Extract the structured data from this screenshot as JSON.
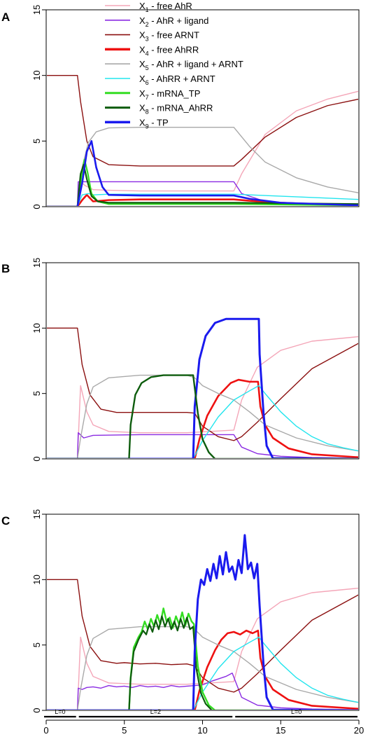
{
  "panel_labels": [
    "A",
    "B",
    "C"
  ],
  "legend": [
    {
      "prefix": "X",
      "sub": "1",
      "text": " - free AhR",
      "color": "#f4a6b8"
    },
    {
      "prefix": "X",
      "sub": "2",
      "text": " - AhR + ligand",
      "color": "#8a2be2"
    },
    {
      "prefix": "X",
      "sub": "3",
      "text": " - free ARNT",
      "color": "#8b1010"
    },
    {
      "prefix": "X",
      "sub": "4",
      "text": " - free AhRR",
      "color": "#ee1111"
    },
    {
      "prefix": "X",
      "sub": "5",
      "text": " - AhR + ligand + ARNT",
      "color": "#a9a9a9"
    },
    {
      "prefix": "X",
      "sub": "6",
      "text": " - AhRR + ARNT",
      "color": "#22e5ee"
    },
    {
      "prefix": "X",
      "sub": "7",
      "text": " - mRNA_TP",
      "color": "#33dd22"
    },
    {
      "prefix": "X",
      "sub": "8",
      "text": " - mRNA_AhRR",
      "color": "#0d5c0d"
    },
    {
      "prefix": "X",
      "sub": "9",
      "text": " - TP",
      "color": "#1a1aee"
    }
  ],
  "phase_bar": [
    {
      "label": "L=0",
      "from": 0,
      "to": 2
    },
    {
      "label": "L=2",
      "from": 2,
      "to": 12
    },
    {
      "label": "L=0",
      "from": 12,
      "to": 20
    }
  ],
  "chart_data": [
    {
      "panel": "A",
      "type": "line",
      "xlim": [
        0,
        20
      ],
      "ylim": [
        0,
        15
      ],
      "yticks": [
        0,
        5,
        10,
        15
      ],
      "xticks": [
        0,
        5,
        10,
        15,
        20
      ],
      "series": [
        {
          "color": "#f4a6b8",
          "width": 1.4,
          "x": [
            0,
            2,
            2.2,
            2.5,
            3,
            4,
            6,
            12,
            12.5,
            14,
            16,
            18,
            20
          ],
          "y": [
            0,
            0,
            1.9,
            1.6,
            1.3,
            1.25,
            1.2,
            1.2,
            2.5,
            5.5,
            7.3,
            8.2,
            8.8
          ]
        },
        {
          "color": "#8a2be2",
          "width": 1.4,
          "x": [
            0,
            2,
            2.05,
            2.5,
            3,
            6,
            12,
            12.5,
            14,
            16,
            20
          ],
          "y": [
            0,
            0,
            1.9,
            1.9,
            1.9,
            1.9,
            1.9,
            1.0,
            0.4,
            0.2,
            0.1
          ]
        },
        {
          "color": "#8b1010",
          "width": 1.4,
          "x": [
            0,
            2,
            2.2,
            2.6,
            3,
            4,
            6,
            12,
            12.5,
            14,
            16,
            18,
            20
          ],
          "y": [
            10,
            10,
            8,
            5,
            3.8,
            3.2,
            3.1,
            3.1,
            3.6,
            5.3,
            6.8,
            7.7,
            8.2
          ]
        },
        {
          "color": "#ee1111",
          "width": 2.6,
          "x": [
            0,
            2,
            2.3,
            2.6,
            3,
            4,
            6,
            12,
            13,
            15,
            17,
            20
          ],
          "y": [
            0,
            0,
            0.5,
            0.9,
            0.4,
            0.5,
            0.55,
            0.55,
            0.45,
            0.3,
            0.2,
            0.15
          ]
        },
        {
          "color": "#a9a9a9",
          "width": 1.4,
          "x": [
            0,
            2,
            2.3,
            2.7,
            3.2,
            4,
            6,
            12,
            13,
            14,
            16,
            18,
            20
          ],
          "y": [
            0,
            0,
            3,
            4.9,
            5.7,
            6,
            6.05,
            6.05,
            4.6,
            3.4,
            2.2,
            1.5,
            1.05
          ]
        },
        {
          "color": "#22e5ee",
          "width": 1.4,
          "x": [
            0,
            2,
            2.3,
            2.7,
            3,
            4,
            6,
            12,
            14,
            16,
            18,
            20
          ],
          "y": [
            0,
            0,
            0.9,
            1.0,
            0.9,
            0.95,
            0.95,
            0.95,
            0.85,
            0.75,
            0.65,
            0.55
          ]
        },
        {
          "color": "#33dd22",
          "width": 2.2,
          "x": [
            0,
            2,
            2.25,
            2.45,
            2.65,
            2.9,
            3.3,
            4,
            12,
            20
          ],
          "y": [
            0,
            0,
            2.3,
            3.6,
            2.6,
            1.0,
            0.4,
            0.2,
            0.2,
            0.1
          ]
        },
        {
          "color": "#0d5c0d",
          "width": 2.2,
          "x": [
            0,
            2,
            2.2,
            2.4,
            2.6,
            2.9,
            3.3,
            4,
            12,
            20
          ],
          "y": [
            0,
            0,
            2.5,
            3.2,
            2.1,
            0.8,
            0.4,
            0.3,
            0.3,
            0.2
          ]
        },
        {
          "color": "#1a1aee",
          "width": 2.6,
          "x": [
            0,
            2,
            2.3,
            2.6,
            2.9,
            3.2,
            3.6,
            4,
            6,
            12,
            13,
            15,
            20
          ],
          "y": [
            0,
            0,
            1.8,
            4.2,
            5.0,
            3.0,
            1.5,
            0.9,
            0.85,
            0.85,
            0.6,
            0.3,
            0.1
          ]
        }
      ]
    },
    {
      "panel": "B",
      "type": "line",
      "xlim": [
        0,
        20
      ],
      "ylim": [
        0,
        15
      ],
      "yticks": [
        0,
        5,
        10,
        15
      ],
      "xticks": [
        0,
        5,
        10,
        15,
        20
      ],
      "series": [
        {
          "color": "#f4a6b8",
          "width": 1.4,
          "x": [
            0,
            2,
            2.2,
            2.6,
            3,
            4,
            6,
            9,
            12,
            12.5,
            13.5,
            15,
            17,
            20
          ],
          "y": [
            0,
            0,
            5.6,
            3.6,
            2.6,
            2.1,
            2.0,
            2.0,
            2.2,
            4.5,
            7.0,
            8.3,
            9.0,
            9.35
          ]
        },
        {
          "color": "#8a2be2",
          "width": 1.4,
          "x": [
            0,
            2,
            2.05,
            2.4,
            3,
            6,
            9,
            12,
            12.5,
            13.5,
            15,
            17,
            20
          ],
          "y": [
            0,
            0,
            2.0,
            1.6,
            1.8,
            1.85,
            1.85,
            1.85,
            0.9,
            0.4,
            0.2,
            0.1,
            0.05
          ]
        },
        {
          "color": "#8b1010",
          "width": 1.4,
          "x": [
            0,
            2,
            2.3,
            2.8,
            3.5,
            4.5,
            9,
            9.5,
            10,
            11,
            12,
            12.5,
            13.5,
            15,
            17,
            20
          ],
          "y": [
            10,
            10,
            7.2,
            4.9,
            3.8,
            3.55,
            3.55,
            3.5,
            2.5,
            1.7,
            1.4,
            1.7,
            2.8,
            4.6,
            6.9,
            8.85
          ]
        },
        {
          "color": "#ee1111",
          "width": 2.6,
          "x": [
            0,
            9.5,
            9.8,
            10.3,
            11,
            11.8,
            12.3,
            13,
            13.55,
            13.7,
            14,
            14.5,
            15.5,
            17,
            20
          ],
          "y": [
            0,
            0,
            1.5,
            3.3,
            4.8,
            5.8,
            6.05,
            5.9,
            5.9,
            4.0,
            2.6,
            1.6,
            0.8,
            0.35,
            0.12
          ]
        },
        {
          "color": "#a9a9a9",
          "width": 1.4,
          "x": [
            0,
            2,
            2.2,
            2.6,
            3,
            4,
            6,
            9,
            9.5,
            10,
            11,
            12,
            13,
            14,
            16,
            18,
            20
          ],
          "y": [
            0,
            0,
            1.6,
            4.2,
            5.5,
            6.2,
            6.4,
            6.4,
            6.2,
            5.6,
            5.0,
            4.5,
            3.6,
            2.6,
            1.6,
            1.0,
            0.6
          ]
        },
        {
          "color": "#22e5ee",
          "width": 1.4,
          "x": [
            0,
            9.4,
            10,
            11,
            12,
            13,
            13.6,
            14,
            15,
            16,
            17,
            18,
            19,
            20
          ],
          "y": [
            0,
            0,
            1.4,
            3.2,
            4.5,
            5.2,
            5.6,
            5.0,
            3.6,
            2.5,
            1.7,
            1.15,
            0.85,
            0.6
          ]
        },
        {
          "color": "#1a1aee",
          "width": 3.0,
          "x": [
            0,
            9.4,
            9.5,
            9.8,
            10.2,
            10.8,
            11.5,
            13.6,
            13.65,
            13.9,
            14.1,
            14.5,
            20
          ],
          "y": [
            0,
            0,
            4.0,
            7.6,
            9.4,
            10.4,
            10.7,
            10.7,
            8.0,
            3.5,
            1.0,
            0.05,
            0
          ]
        },
        {
          "color": "#0d5c0d",
          "width": 2.4,
          "x": [
            0,
            5.3,
            5.4,
            5.7,
            6.1,
            6.7,
            7.5,
            9.4,
            9.7,
            10,
            10.4,
            10.8,
            20
          ],
          "y": [
            0,
            0,
            2.6,
            4.9,
            5.8,
            6.25,
            6.4,
            6.4,
            3.5,
            1.5,
            0.5,
            0,
            0
          ]
        }
      ]
    },
    {
      "panel": "C",
      "type": "line",
      "xlim": [
        0,
        20
      ],
      "ylim": [
        0,
        15
      ],
      "yticks": [
        0,
        5,
        10,
        15
      ],
      "xticks": [
        0,
        5,
        10,
        15,
        20
      ],
      "series": [
        {
          "color": "#f4a6b8",
          "width": 1.4,
          "x": [
            0,
            2,
            2.2,
            2.6,
            3,
            4,
            6,
            9,
            12,
            12.5,
            13.5,
            15,
            17,
            20
          ],
          "y": [
            0,
            0,
            5.6,
            3.6,
            2.6,
            2.1,
            2.0,
            2.0,
            2.2,
            4.5,
            7.0,
            8.3,
            9.0,
            9.35
          ]
        },
        {
          "color": "#8a2be2",
          "width": 1.4,
          "x": [
            0,
            2,
            2.05,
            2.3,
            2.6,
            3,
            3.5,
            4,
            4.5,
            5,
            5.5,
            6,
            6.5,
            7,
            7.5,
            8,
            8.5,
            9,
            9.5,
            10,
            10.5,
            11,
            11.5,
            11.9,
            12.5,
            13.5,
            15,
            17,
            20
          ],
          "y": [
            0,
            0,
            1.7,
            1.6,
            1.75,
            1.8,
            1.7,
            1.9,
            1.8,
            1.85,
            1.75,
            1.9,
            1.8,
            1.85,
            1.75,
            1.9,
            1.8,
            1.85,
            1.9,
            1.95,
            2.2,
            2.4,
            2.6,
            2.85,
            1.0,
            0.4,
            0.2,
            0.1,
            0.05
          ]
        },
        {
          "color": "#8b1010",
          "width": 1.4,
          "x": [
            0,
            2,
            2.3,
            2.8,
            3.5,
            4.5,
            5,
            6,
            7,
            8,
            9,
            9.5,
            10,
            11,
            12,
            12.5,
            13.5,
            15,
            17,
            20
          ],
          "y": [
            10,
            10,
            7.2,
            4.9,
            3.8,
            3.6,
            3.65,
            3.55,
            3.6,
            3.5,
            3.55,
            3.4,
            2.5,
            1.7,
            1.4,
            1.7,
            2.8,
            4.6,
            6.9,
            8.85
          ]
        },
        {
          "color": "#ee1111",
          "width": 2.6,
          "x": [
            0,
            9.5,
            9.8,
            10.3,
            10.8,
            11.2,
            11.6,
            12,
            12.4,
            12.8,
            13.2,
            13.55,
            13.7,
            14,
            14.5,
            15.5,
            17,
            20
          ],
          "y": [
            0,
            0,
            1.5,
            3.3,
            4.6,
            5.4,
            5.9,
            6.0,
            5.8,
            6.1,
            5.9,
            6.1,
            4.0,
            2.6,
            1.6,
            0.8,
            0.35,
            0.12
          ]
        },
        {
          "color": "#a9a9a9",
          "width": 1.4,
          "x": [
            0,
            2,
            2.2,
            2.6,
            3,
            4,
            6,
            9,
            9.5,
            10,
            11,
            12,
            13,
            14,
            16,
            18,
            20
          ],
          "y": [
            0,
            0,
            1.6,
            4.2,
            5.5,
            6.2,
            6.4,
            6.4,
            6.2,
            5.6,
            5.0,
            4.5,
            3.6,
            2.6,
            1.6,
            1.0,
            0.6
          ]
        },
        {
          "color": "#22e5ee",
          "width": 1.4,
          "x": [
            0,
            9.4,
            10,
            11,
            12,
            13,
            13.6,
            14,
            15,
            16,
            17,
            18,
            19,
            20
          ],
          "y": [
            0,
            0,
            1.4,
            3.2,
            4.5,
            5.2,
            5.6,
            5.0,
            3.6,
            2.5,
            1.7,
            1.15,
            0.85,
            0.6
          ]
        },
        {
          "color": "#33dd22",
          "width": 2.4,
          "x": [
            0,
            5.3,
            5.4,
            5.6,
            5.9,
            6.1,
            6.3,
            6.5,
            6.7,
            6.9,
            7.1,
            7.3,
            7.5,
            7.7,
            7.9,
            8.1,
            8.3,
            8.5,
            8.7,
            8.9,
            9.1,
            9.3,
            9.45,
            9.7,
            10,
            10.4,
            10.8,
            20
          ],
          "y": [
            0,
            0,
            2.5,
            4.8,
            5.6,
            6.0,
            6.8,
            6.2,
            7.0,
            6.4,
            7.3,
            6.6,
            7.8,
            6.8,
            7.1,
            6.3,
            7.2,
            6.6,
            7.5,
            6.5,
            7.4,
            6.8,
            6.6,
            3.4,
            1.4,
            0.4,
            0,
            0
          ]
        },
        {
          "color": "#0d5c0d",
          "width": 2.2,
          "x": [
            0,
            5.3,
            5.4,
            5.6,
            5.9,
            6.2,
            6.4,
            6.6,
            6.8,
            7.0,
            7.2,
            7.4,
            7.6,
            7.8,
            8.0,
            8.2,
            8.4,
            8.6,
            8.8,
            9.0,
            9.2,
            9.4,
            9.6,
            9.9,
            10.2,
            10.6,
            20
          ],
          "y": [
            0,
            0,
            2.4,
            4.5,
            5.4,
            6.1,
            5.8,
            6.6,
            6.0,
            6.9,
            6.2,
            7.2,
            6.4,
            7.0,
            6.2,
            6.8,
            6.1,
            7.0,
            6.3,
            7.1,
            6.2,
            6.4,
            3.2,
            1.3,
            0.5,
            0,
            0
          ]
        },
        {
          "color": "#1a1aee",
          "width": 3.0,
          "x": [
            0,
            9.4,
            9.5,
            9.7,
            9.9,
            10.1,
            10.3,
            10.5,
            10.7,
            10.9,
            11.1,
            11.3,
            11.5,
            11.7,
            11.9,
            12.1,
            12.3,
            12.5,
            12.7,
            12.9,
            13.1,
            13.3,
            13.5,
            13.65,
            13.9,
            14.1,
            14.5,
            20
          ],
          "y": [
            0,
            0,
            4.5,
            8.5,
            10.0,
            9.6,
            10.8,
            9.9,
            11.2,
            10.1,
            11.8,
            10.4,
            12.1,
            10.6,
            11.0,
            10.0,
            11.5,
            10.5,
            13.4,
            10.8,
            11.3,
            10.1,
            11.2,
            8.0,
            3.5,
            1.0,
            0.05,
            0
          ]
        }
      ]
    }
  ]
}
